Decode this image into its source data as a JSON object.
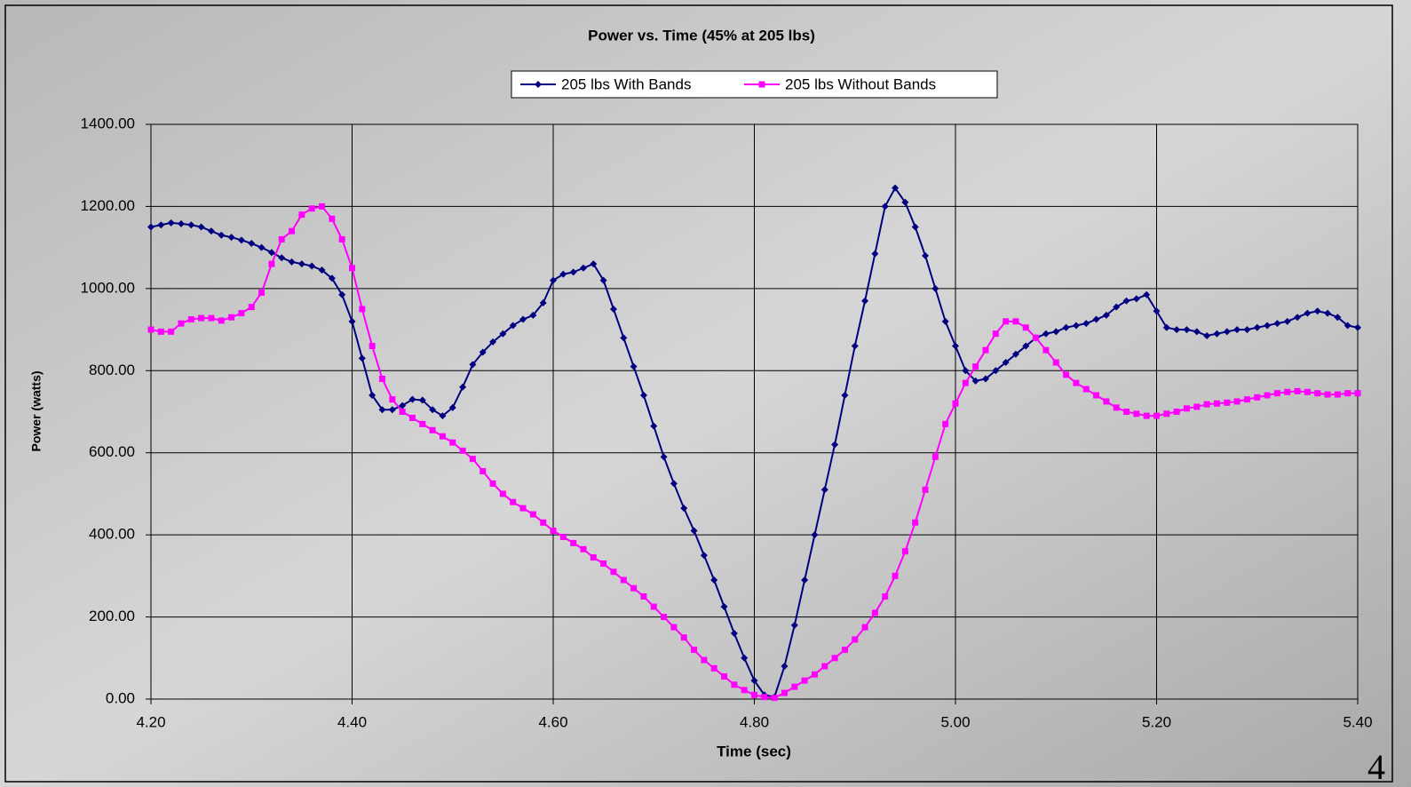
{
  "chart_data": {
    "type": "line",
    "title": "Power vs. Time (45% at 205 lbs)",
    "x_label": "Time (sec)",
    "y_label": "Power (watts)",
    "xlim": [
      4.2,
      5.4
    ],
    "ylim": [
      0,
      1400
    ],
    "xticks": [
      {
        "value": 4.2,
        "label": "4.20"
      },
      {
        "value": 4.4,
        "label": "4.40"
      },
      {
        "value": 4.6,
        "label": "4.60"
      },
      {
        "value": 4.8,
        "label": "4.80"
      },
      {
        "value": 5.0,
        "label": "5.00"
      },
      {
        "value": 5.2,
        "label": "5.20"
      },
      {
        "value": 5.4,
        "label": "5.40"
      }
    ],
    "yticks": [
      {
        "value": 0,
        "label": "0.00"
      },
      {
        "value": 200,
        "label": "200.00"
      },
      {
        "value": 400,
        "label": "400.00"
      },
      {
        "value": 600,
        "label": "600.00"
      },
      {
        "value": 800,
        "label": "800.00"
      },
      {
        "value": 1000,
        "label": "1000.00"
      },
      {
        "value": 1200,
        "label": "1200.00"
      },
      {
        "value": 1400,
        "label": "1400.00"
      }
    ],
    "grid": true,
    "legend": "top",
    "x": [
      4.2,
      4.21,
      4.22,
      4.23,
      4.24,
      4.25,
      4.26,
      4.27,
      4.28,
      4.29,
      4.3,
      4.31,
      4.32,
      4.33,
      4.34,
      4.35,
      4.36,
      4.37,
      4.38,
      4.39,
      4.4,
      4.41,
      4.42,
      4.43,
      4.44,
      4.45,
      4.46,
      4.47,
      4.48,
      4.49,
      4.5,
      4.51,
      4.52,
      4.53,
      4.54,
      4.55,
      4.56,
      4.57,
      4.58,
      4.59,
      4.6,
      4.61,
      4.62,
      4.63,
      4.64,
      4.65,
      4.66,
      4.67,
      4.68,
      4.69,
      4.7,
      4.71,
      4.72,
      4.73,
      4.74,
      4.75,
      4.76,
      4.77,
      4.78,
      4.79,
      4.8,
      4.81,
      4.82,
      4.83,
      4.84,
      4.85,
      4.86,
      4.87,
      4.88,
      4.89,
      4.9,
      4.91,
      4.92,
      4.93,
      4.94,
      4.95,
      4.96,
      4.97,
      4.98,
      4.99,
      5.0,
      5.01,
      5.02,
      5.03,
      5.04,
      5.05,
      5.06,
      5.07,
      5.08,
      5.09,
      5.1,
      5.11,
      5.12,
      5.13,
      5.14,
      5.15,
      5.16,
      5.17,
      5.18,
      5.19,
      5.2,
      5.21,
      5.22,
      5.23,
      5.24,
      5.25,
      5.26,
      5.27,
      5.28,
      5.29,
      5.3,
      5.31,
      5.32,
      5.33,
      5.34,
      5.35,
      5.36,
      5.37,
      5.38,
      5.39,
      5.4
    ],
    "series": [
      {
        "name": "205 lbs With Bands",
        "color": "#000080",
        "marker": "diamond",
        "values": [
          1150,
          1155,
          1160,
          1158,
          1155,
          1150,
          1140,
          1130,
          1125,
          1118,
          1110,
          1100,
          1088,
          1075,
          1065,
          1060,
          1055,
          1045,
          1025,
          985,
          920,
          830,
          740,
          705,
          705,
          715,
          730,
          728,
          705,
          690,
          710,
          760,
          815,
          845,
          870,
          890,
          910,
          925,
          935,
          965,
          1020,
          1035,
          1040,
          1050,
          1060,
          1020,
          950,
          880,
          810,
          740,
          665,
          590,
          525,
          465,
          410,
          350,
          290,
          225,
          160,
          100,
          45,
          10,
          5,
          80,
          180,
          290,
          400,
          510,
          620,
          740,
          860,
          970,
          1085,
          1200,
          1245,
          1210,
          1150,
          1080,
          1000,
          920,
          860,
          800,
          775,
          780,
          800,
          820,
          840,
          860,
          880,
          890,
          895,
          905,
          910,
          915,
          925,
          935,
          955,
          970,
          975,
          985,
          945,
          905,
          900,
          900,
          895,
          885,
          890,
          895,
          900,
          900,
          905,
          910,
          915,
          920,
          930,
          940,
          945,
          940,
          930,
          910,
          905
        ]
      },
      {
        "name": "205 lbs Without Bands",
        "color": "#ff00ff",
        "marker": "square",
        "values": [
          900,
          895,
          895,
          915,
          925,
          928,
          928,
          922,
          930,
          940,
          955,
          990,
          1060,
          1120,
          1140,
          1180,
          1195,
          1200,
          1170,
          1120,
          1050,
          950,
          860,
          780,
          730,
          700,
          685,
          670,
          655,
          640,
          625,
          605,
          585,
          555,
          525,
          500,
          480,
          465,
          450,
          430,
          410,
          395,
          380,
          365,
          345,
          330,
          310,
          290,
          270,
          250,
          225,
          200,
          175,
          150,
          120,
          95,
          75,
          55,
          35,
          22,
          10,
          5,
          3,
          15,
          30,
          45,
          60,
          80,
          100,
          120,
          145,
          175,
          210,
          250,
          300,
          360,
          430,
          510,
          590,
          670,
          720,
          770,
          810,
          850,
          890,
          920,
          920,
          905,
          880,
          850,
          820,
          790,
          770,
          755,
          740,
          725,
          710,
          700,
          695,
          690,
          690,
          695,
          700,
          708,
          712,
          718,
          720,
          722,
          725,
          730,
          735,
          740,
          745,
          748,
          750,
          748,
          745,
          742,
          742,
          745,
          745
        ]
      }
    ]
  },
  "page_number": "4"
}
